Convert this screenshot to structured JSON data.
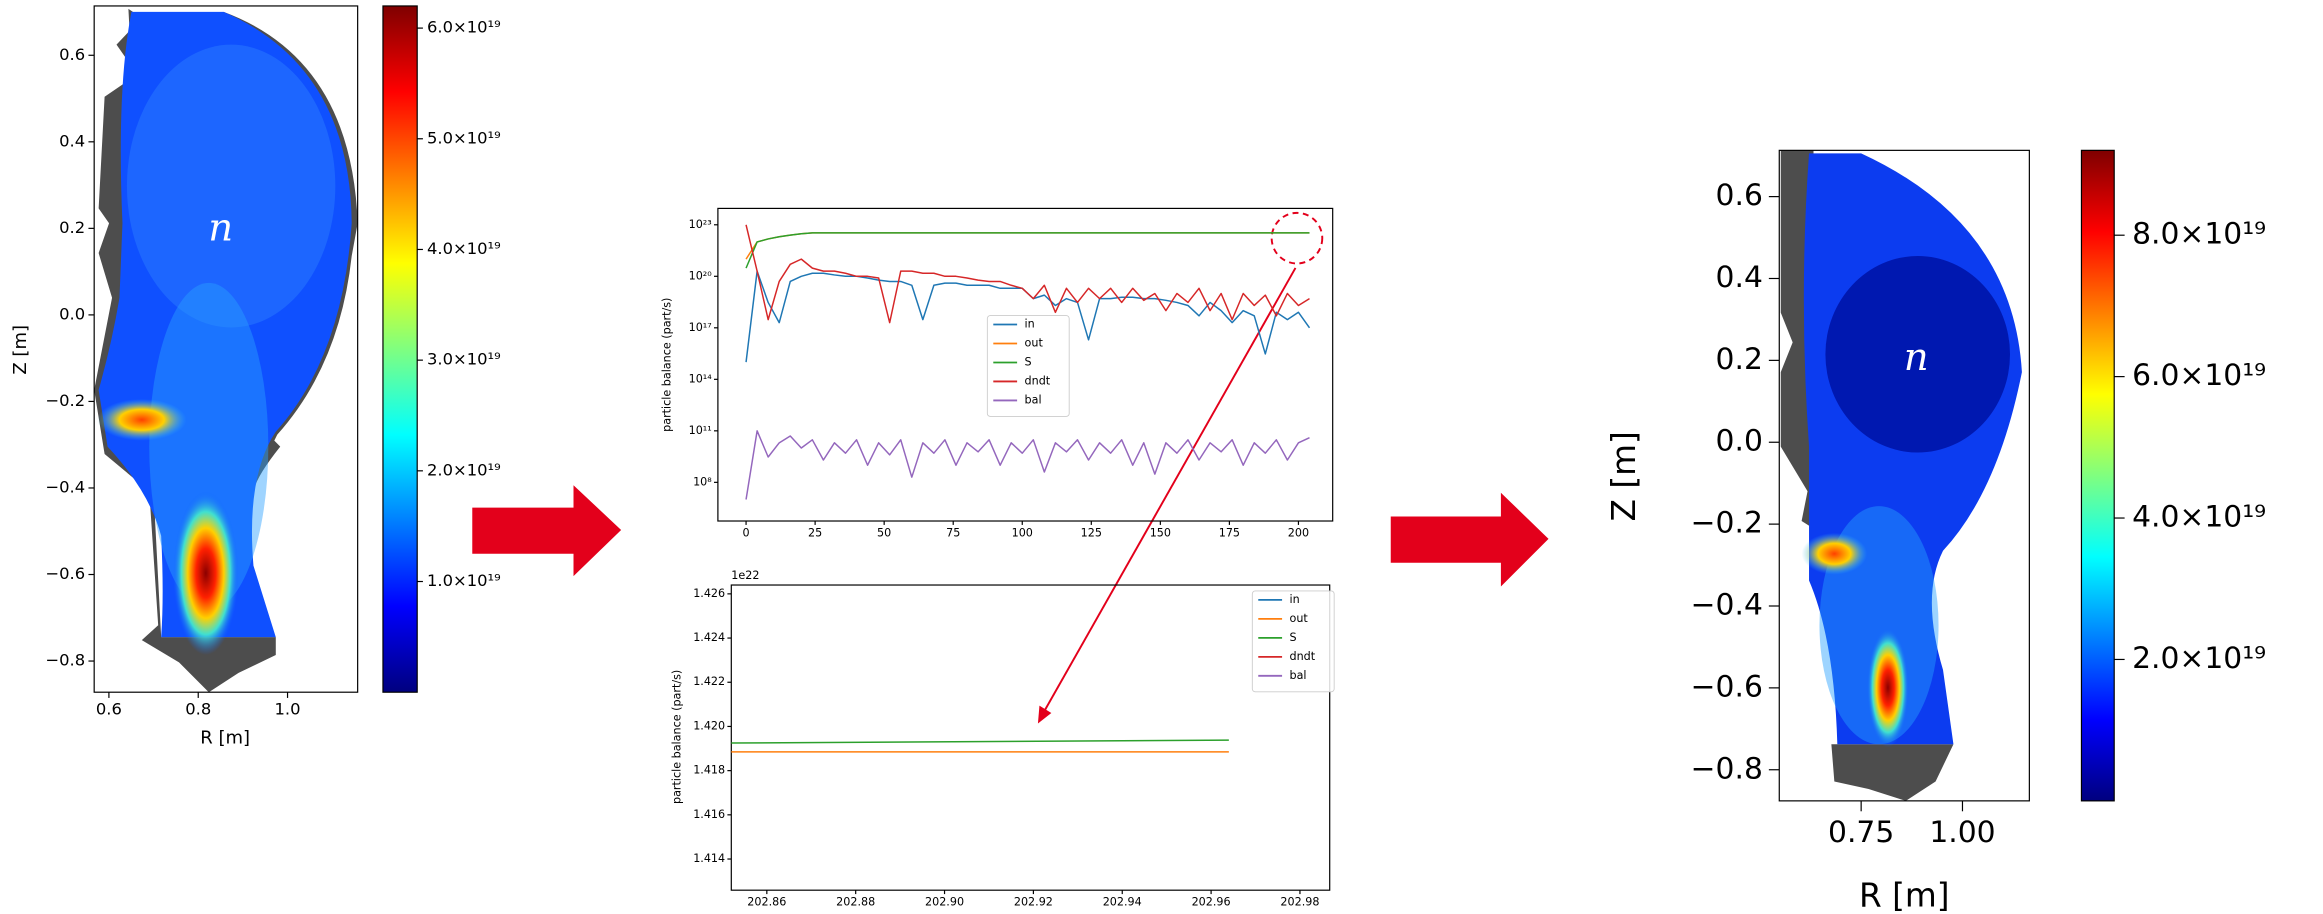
{
  "chart_data": [
    {
      "type": "heatmap",
      "xlabel": "R [m]",
      "ylabel": "Z [m]",
      "annotation": "n",
      "xlim": [
        0.567,
        1.157
      ],
      "xticks": [
        0.6,
        0.8,
        {
          "value": 1,
          "label": "1.0"
        }
      ],
      "ylim": [
        -0.872,
        0.714
      ],
      "yticks": [
        0.6,
        0.4,
        0.2,
        {
          "value": 0,
          "label": "0.0"
        },
        {
          "value": -0.2,
          "label": "−0.2"
        },
        {
          "value": -0.4,
          "label": "−0.4"
        },
        {
          "value": -0.6,
          "label": "−0.6"
        },
        {
          "value": -0.8,
          "label": "−0.8"
        }
      ],
      "colorbar": {
        "lim": [
          0,
          6.2e+19
        ],
        "ticks": [
          {
            "value": 1e+19,
            "label": "1.0×10¹⁹"
          },
          {
            "value": 2e+19,
            "label": "2.0×10¹⁹"
          },
          {
            "value": 3e+19,
            "label": "3.0×10¹⁹"
          },
          {
            "value": 4e+19,
            "label": "4.0×10¹⁹"
          },
          {
            "value": 5e+19,
            "label": "5.0×10¹⁹"
          },
          {
            "value": 6e+19,
            "label": "6.0×10¹⁹"
          }
        ]
      }
    },
    {
      "type": "line",
      "ylabel": "particle balance (part/s)",
      "log_y": true,
      "xlim": [
        -10.2,
        212.4
      ],
      "xticks": [
        0,
        25,
        50,
        75,
        100,
        125,
        150,
        175,
        200
      ],
      "ylim": [
        560000.0,
        9e+23
      ],
      "yticks": [
        {
          "value": 100000000.0,
          "label": "10⁸"
        },
        {
          "value": 100000000000.0,
          "label": "10¹¹"
        },
        {
          "value": 100000000000000.0,
          "label": "10¹⁴"
        },
        {
          "value": 1e+17,
          "label": "10¹⁷"
        },
        {
          "value": 1e+20,
          "label": "10²⁰"
        },
        {
          "value": 1e+23,
          "label": "10²³"
        }
      ],
      "x": [
        0,
        4,
        8,
        12,
        16,
        20,
        24,
        28,
        32,
        36,
        40,
        44,
        48,
        52,
        56,
        60,
        64,
        68,
        72,
        76,
        80,
        84,
        88,
        92,
        96,
        100,
        104,
        108,
        112,
        116,
        120,
        124,
        128,
        132,
        136,
        140,
        144,
        148,
        152,
        156,
        160,
        164,
        168,
        172,
        176,
        180,
        184,
        188,
        192,
        196,
        200,
        204
      ],
      "series": [
        {
          "name": "in",
          "color": "#1f77b4",
          "values": [
            1000000000000000.0,
            2e+20,
            3e+18,
            2e+17,
            5e+19,
            1e+20,
            1.5e+20,
            1.5e+20,
            1.2e+20,
            1e+20,
            1e+20,
            8e+19,
            6e+19,
            5e+19,
            5e+19,
            3e+19,
            3e+17,
            3e+19,
            4e+19,
            4e+19,
            3e+19,
            3e+19,
            3e+19,
            2e+19,
            2e+19,
            2e+19,
            5e+18,
            8e+18,
            2e+18,
            5e+18,
            3e+18,
            2e+16,
            5e+18,
            5e+18,
            6e+18,
            6e+18,
            5e+18,
            5e+18,
            4e+18,
            3e+18,
            2e+18,
            5e+17,
            3e+18,
            1e+18,
            2e+17,
            1e+18,
            5e+17,
            3000000000000000.0,
            8e+17,
            3e+17,
            8e+17,
            1e+17
          ]
        },
        {
          "name": "out",
          "color": "#ff7f0e",
          "values": [
            1e+21,
            1e+22,
            1.5e+22,
            2e+22,
            2.5e+22,
            3e+22,
            3.4e+22,
            3.4e+22,
            3.4e+22,
            3.4e+22,
            3.4e+22,
            3.4e+22,
            3.4e+22,
            3.4e+22,
            3.4e+22,
            3.4e+22,
            3.4e+22,
            3.4e+22,
            3.4e+22,
            3.4e+22,
            3.4e+22,
            3.4e+22,
            3.4e+22,
            3.4e+22,
            3.4e+22,
            3.4e+22,
            3.4e+22,
            3.4e+22,
            3.4e+22,
            3.4e+22,
            3.4e+22,
            3.4e+22,
            3.4e+22,
            3.4e+22,
            3.4e+22,
            3.4e+22,
            3.4e+22,
            3.4e+22,
            3.4e+22,
            3.4e+22,
            3.4e+22,
            3.4e+22,
            3.4e+22,
            3.4e+22,
            3.4e+22,
            3.4e+22,
            3.4e+22,
            3.4e+22,
            3.4e+22,
            3.4e+22,
            3.4e+22,
            3.4e+22
          ]
        },
        {
          "name": "S",
          "color": "#2ca02c",
          "values": [
            3e+20,
            1e+22,
            1.5e+22,
            2e+22,
            2.5e+22,
            3e+22,
            3.4e+22,
            3.4e+22,
            3.4e+22,
            3.4e+22,
            3.4e+22,
            3.4e+22,
            3.4e+22,
            3.4e+22,
            3.4e+22,
            3.4e+22,
            3.4e+22,
            3.4e+22,
            3.4e+22,
            3.4e+22,
            3.4e+22,
            3.4e+22,
            3.4e+22,
            3.4e+22,
            3.4e+22,
            3.4e+22,
            3.4e+22,
            3.4e+22,
            3.4e+22,
            3.4e+22,
            3.4e+22,
            3.4e+22,
            3.4e+22,
            3.4e+22,
            3.4e+22,
            3.4e+22,
            3.4e+22,
            3.4e+22,
            3.4e+22,
            3.4e+22,
            3.4e+22,
            3.4e+22,
            3.4e+22,
            3.4e+22,
            3.4e+22,
            3.4e+22,
            3.4e+22,
            3.4e+22,
            3.4e+22,
            3.4e+22,
            3.4e+22,
            3.4e+22
          ]
        },
        {
          "name": "dndt",
          "color": "#d62728",
          "values": [
            1e+23,
            2e+20,
            3e+17,
            5e+19,
            5e+20,
            1e+21,
            3e+20,
            2e+20,
            2e+20,
            1.5e+20,
            1e+20,
            1e+20,
            8e+19,
            2e+17,
            2e+20,
            2e+20,
            1.5e+20,
            1.5e+20,
            1e+20,
            1e+20,
            8e+19,
            6e+19,
            5e+19,
            5e+19,
            3e+19,
            2e+19,
            5e+18,
            3e+19,
            8e+17,
            2e+19,
            3e+18,
            2e+19,
            5e+18,
            2e+19,
            3e+18,
            2e+19,
            4e+18,
            1e+19,
            1e+18,
            1e+19,
            3e+18,
            2e+19,
            1e+18,
            1e+19,
            3e+17,
            1e+19,
            2e+18,
            8e+18,
            5e+17,
            1e+19,
            2e+18,
            5e+18
          ]
        },
        {
          "name": "bal",
          "color": "#9467bd",
          "values": [
            10000000.0,
            100000000000.0,
            3000000000.0,
            20000000000.0,
            50000000000.0,
            10000000000.0,
            30000000000.0,
            2000000000.0,
            20000000000.0,
            5000000000.0,
            30000000000.0,
            1000000000.0,
            20000000000.0,
            4000000000.0,
            30000000000.0,
            200000000.0,
            20000000000.0,
            5000000000.0,
            30000000000.0,
            1000000000.0,
            20000000000.0,
            6000000000.0,
            30000000000.0,
            1000000000.0,
            20000000000.0,
            5000000000.0,
            30000000000.0,
            400000000.0,
            20000000000.0,
            6000000000.0,
            30000000000.0,
            2000000000.0,
            20000000000.0,
            5000000000.0,
            30000000000.0,
            1000000000.0,
            20000000000.0,
            300000000.0,
            20000000000.0,
            5000000000.0,
            30000000000.0,
            2000000000.0,
            20000000000.0,
            6000000000.0,
            30000000000.0,
            1000000000.0,
            20000000000.0,
            5000000000.0,
            30000000000.0,
            2000000000.0,
            20000000000.0,
            40000000000.0
          ]
        }
      ]
    },
    {
      "type": "line",
      "ylabel": "particle balance (part/s)",
      "offset_label": "1e22",
      "xlim": [
        202.852,
        202.9867
      ],
      "xticks": [
        202.86,
        202.88,
        {
          "value": 202.9,
          "label": "202.90"
        },
        202.92,
        202.94,
        202.96,
        202.98
      ],
      "ylim": [
        1.41259,
        1.4264
      ],
      "yticks": [
        1.414,
        1.416,
        1.418,
        {
          "value": 1.42,
          "label": "1.420"
        },
        1.422,
        1.424,
        1.426
      ],
      "x": [
        202.852,
        202.964
      ],
      "series": [
        {
          "name": "in",
          "color": "#1f77b4",
          "values": [
            null,
            null
          ]
        },
        {
          "name": "out",
          "color": "#ff7f0e",
          "values": [
            1.41885,
            1.41885
          ]
        },
        {
          "name": "S",
          "color": "#2ca02c",
          "values": [
            1.41925,
            1.41938
          ]
        },
        {
          "name": "dndt",
          "color": "#d62728",
          "values": [
            null,
            null
          ]
        },
        {
          "name": "bal",
          "color": "#9467bd",
          "values": [
            null,
            null
          ]
        }
      ]
    },
    {
      "type": "heatmap",
      "xlabel": "R [m]",
      "ylabel": "Z [m]",
      "annotation": "n",
      "xlim": [
        0.548,
        1.165
      ],
      "xticks": [
        0.75,
        {
          "value": 1,
          "label": "1.00"
        }
      ],
      "ylim": [
        -0.876,
        0.713
      ],
      "yticks": [
        0.6,
        0.4,
        0.2,
        {
          "value": 0,
          "label": "0.0"
        },
        {
          "value": -0.2,
          "label": "−0.2"
        },
        {
          "value": -0.4,
          "label": "−0.4"
        },
        {
          "value": -0.6,
          "label": "−0.6"
        },
        {
          "value": -0.8,
          "label": "−0.8"
        }
      ],
      "colorbar": {
        "lim": [
          0,
          9.2e+19
        ],
        "ticks": [
          {
            "value": 2e+19,
            "label": "2.0×10¹⁹"
          },
          {
            "value": 4e+19,
            "label": "4.0×10¹⁹"
          },
          {
            "value": 6e+19,
            "label": "6.0×10¹⁹"
          },
          {
            "value": 8e+19,
            "label": "8.0×10¹⁹"
          }
        ]
      }
    }
  ]
}
